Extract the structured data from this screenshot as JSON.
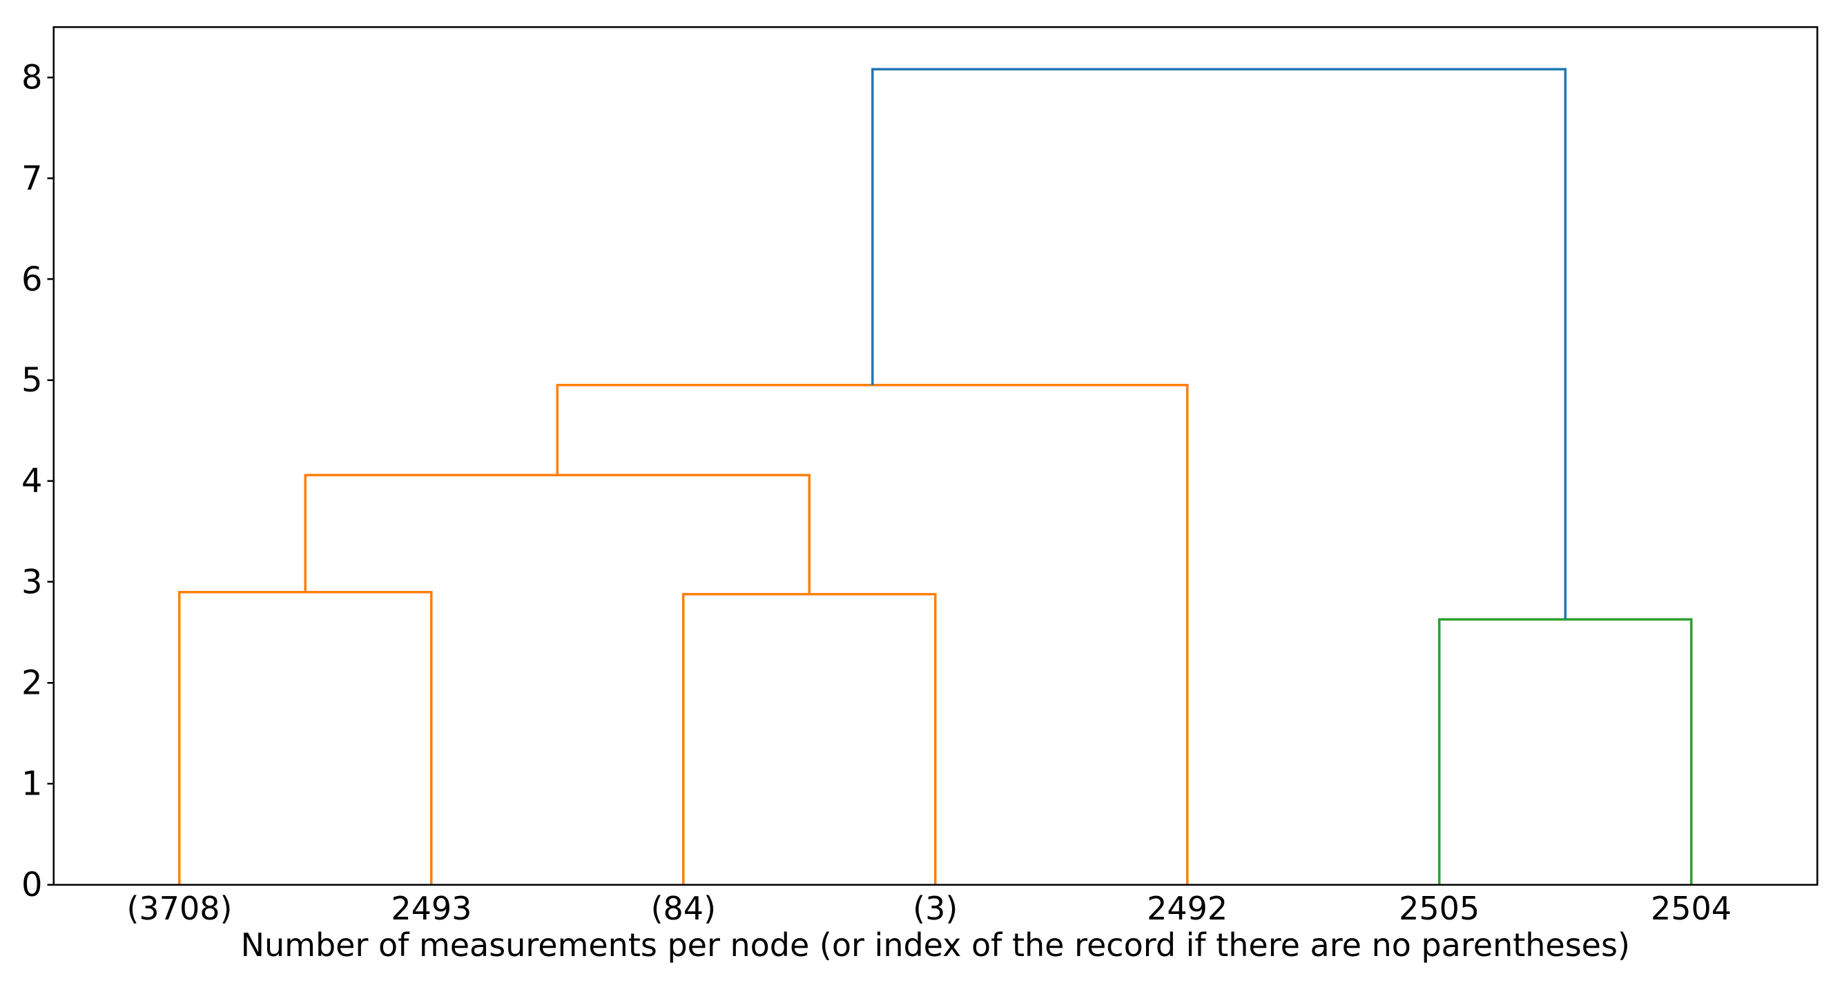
{
  "figure": {
    "background": "#ffffff"
  },
  "chart_data": {
    "type": "dendrogram",
    "title": "",
    "xlabel": "Number of measurements per node (or index of the record if there are no parentheses)",
    "ylabel": "",
    "grid": false,
    "legend": "none",
    "ylim": [
      0,
      8.5
    ],
    "y_ticks": [
      0,
      1,
      2,
      3,
      4,
      5,
      6,
      7,
      8
    ],
    "leaf_axis_range": [
      0,
      70
    ],
    "leaves": [
      {
        "label": "(3708)",
        "x": 5
      },
      {
        "label": "2493",
        "x": 15
      },
      {
        "label": "(84)",
        "x": 25
      },
      {
        "label": "(3)",
        "x": 35
      },
      {
        "label": "2492",
        "x": 45
      },
      {
        "label": "2505",
        "x": 55
      },
      {
        "label": "2504",
        "x": 65
      }
    ],
    "links": [
      {
        "x1": 5,
        "y1": 0,
        "x2": 15,
        "y2": 0,
        "height": 2.9,
        "color": "#ff7f0e"
      },
      {
        "x1": 25,
        "y1": 0,
        "x2": 35,
        "y2": 0,
        "height": 2.88,
        "color": "#ff7f0e"
      },
      {
        "x1": 10,
        "y1": 2.9,
        "x2": 30,
        "y2": 2.88,
        "height": 4.06,
        "color": "#ff7f0e"
      },
      {
        "x1": 20,
        "y1": 4.06,
        "x2": 45,
        "y2": 0,
        "height": 4.95,
        "color": "#ff7f0e"
      },
      {
        "x1": 55,
        "y1": 0,
        "x2": 65,
        "y2": 0,
        "height": 2.63,
        "color": "#2ca02c"
      },
      {
        "x1": 32.5,
        "y1": 4.95,
        "x2": 60,
        "y2": 2.63,
        "height": 8.08,
        "color": "#1f77b4"
      }
    ],
    "colors": {
      "above_threshold_link": "#1f77b4",
      "cluster_1": "#ff7f0e",
      "cluster_2": "#2ca02c",
      "axis": "#000000"
    }
  }
}
